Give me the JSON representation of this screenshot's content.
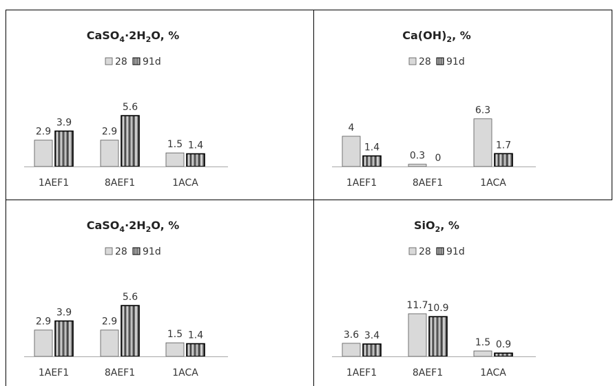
{
  "figure": {
    "colors": {
      "series_28": "#d9d9d9",
      "series_91d": "#7f7f7f",
      "border": "#000000"
    }
  },
  "chart_data": [
    {
      "type": "bar",
      "title": "CaSO4·2H2O, %",
      "title_rich": [
        {
          "t": "CaSO"
        },
        {
          "t": "4",
          "sub": true
        },
        {
          "t": "·2H"
        },
        {
          "t": "2",
          "sub": true
        },
        {
          "t": "O, %"
        }
      ],
      "categories": [
        "1AEF1",
        "8AEF1",
        "1ACA"
      ],
      "series": [
        {
          "name": "28",
          "values": [
            2.9,
            2.9,
            1.5
          ],
          "labels": [
            "2.9",
            "2.9",
            "1.5"
          ]
        },
        {
          "name": "91d",
          "values": [
            3.9,
            5.6,
            1.4
          ],
          "labels": [
            "3.9",
            "5.6",
            "1.4"
          ]
        }
      ],
      "legend_position": "top-center",
      "grid": false
    },
    {
      "type": "bar",
      "title": "Ca(OH)2, %",
      "title_rich": [
        {
          "t": "Ca(OH)"
        },
        {
          "t": "2",
          "sub": true
        },
        {
          "t": ",  %"
        }
      ],
      "categories": [
        "1AEF1",
        "8AEF1",
        "1ACA"
      ],
      "series": [
        {
          "name": "28",
          "values": [
            4,
            0.3,
            6.3
          ],
          "labels": [
            "4",
            "0.3",
            "6.3"
          ]
        },
        {
          "name": "91d",
          "values": [
            1.4,
            0,
            1.7
          ],
          "labels": [
            "1.4",
            "0",
            "1.7"
          ]
        }
      ],
      "legend_position": "top-center",
      "grid": false
    },
    {
      "type": "bar",
      "title": "CaSO4·2H2O, %",
      "title_rich": [
        {
          "t": "CaSO"
        },
        {
          "t": "4",
          "sub": true
        },
        {
          "t": "·2H"
        },
        {
          "t": "2",
          "sub": true
        },
        {
          "t": "O, %"
        }
      ],
      "categories": [
        "1AEF1",
        "8AEF1",
        "1ACA"
      ],
      "series": [
        {
          "name": "28",
          "values": [
            2.9,
            2.9,
            1.5
          ],
          "labels": [
            "2.9",
            "2.9",
            "1.5"
          ]
        },
        {
          "name": "91d",
          "values": [
            3.9,
            5.6,
            1.4
          ],
          "labels": [
            "3.9",
            "5.6",
            "1.4"
          ]
        }
      ],
      "legend_position": "top-center",
      "grid": false
    },
    {
      "type": "bar",
      "title": "SiO2, %",
      "title_rich": [
        {
          "t": "SiO"
        },
        {
          "t": "2",
          "sub": true
        },
        {
          "t": ", %"
        }
      ],
      "categories": [
        "1AEF1",
        "8AEF1",
        "1ACA"
      ],
      "series": [
        {
          "name": "28",
          "values": [
            3.6,
            11.7,
            1.5
          ],
          "labels": [
            "3.6",
            "11.7",
            "1.5"
          ]
        },
        {
          "name": "91d",
          "values": [
            3.4,
            10.9,
            0.9
          ],
          "labels": [
            "3.4",
            "10.9",
            "0.9"
          ]
        }
      ],
      "legend_position": "top-center",
      "grid": false
    }
  ]
}
